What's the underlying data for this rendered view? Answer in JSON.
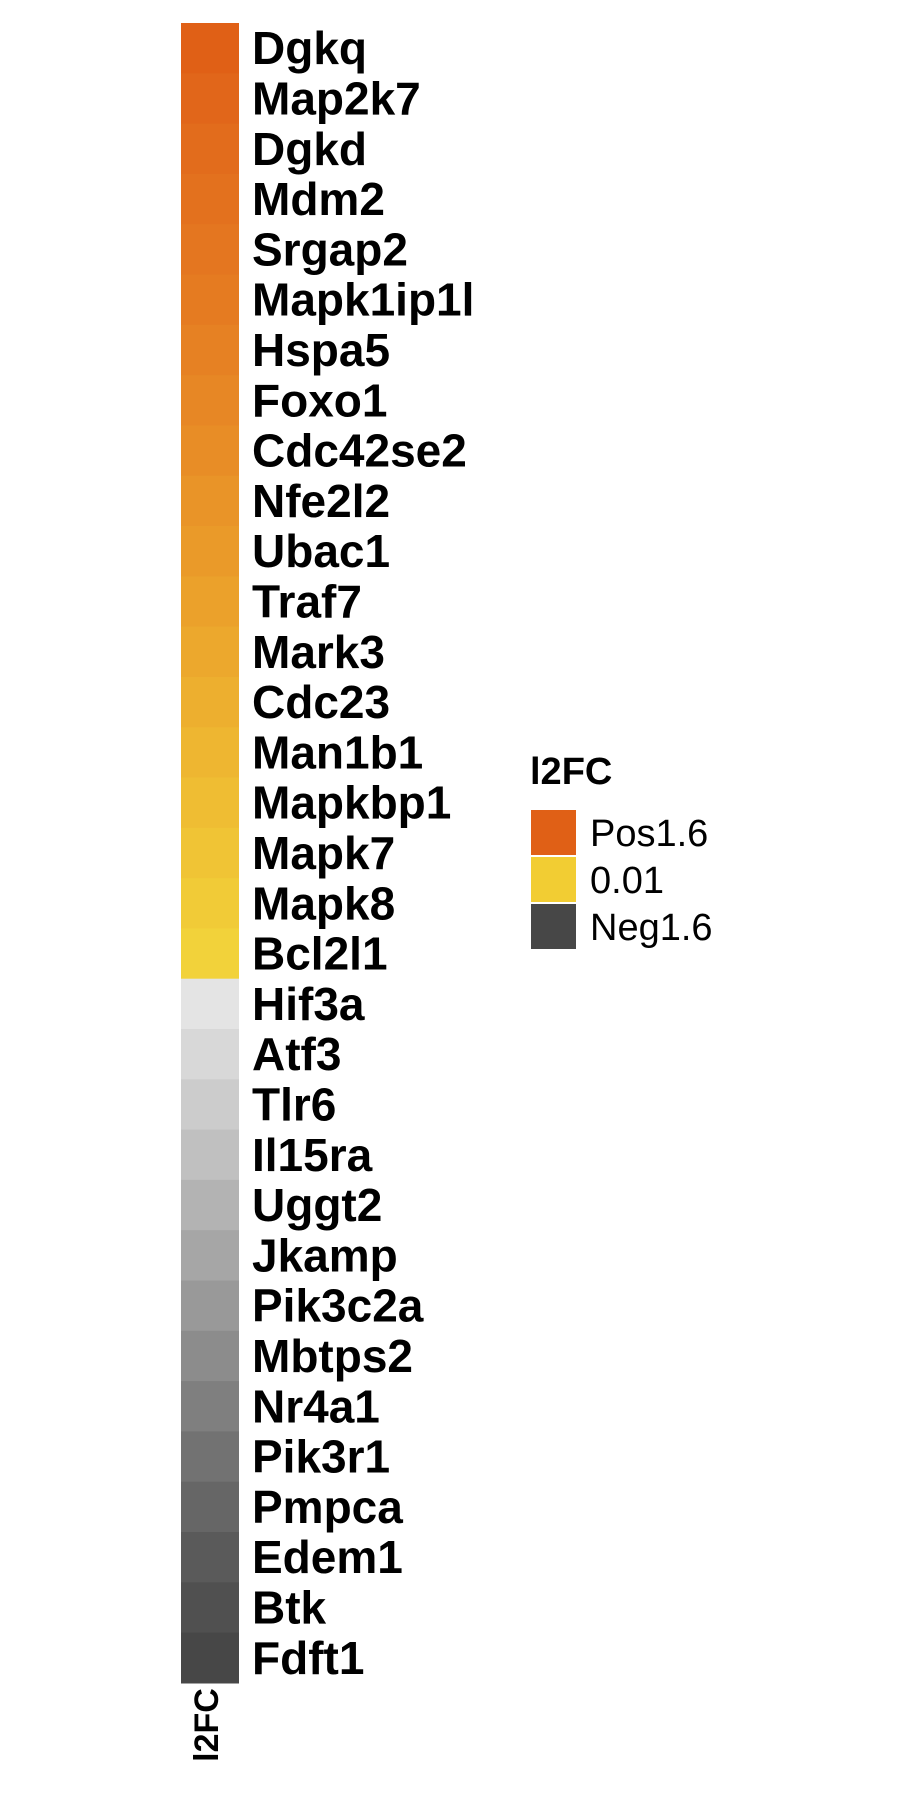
{
  "chart_data": {
    "type": "heatmap",
    "column_label": "l2FC",
    "rows": [
      "Dgkq",
      "Map2k7",
      "Dgkd",
      "Mdm2",
      "Srgap2",
      "Mapk1ip1l",
      "Hspa5",
      "Foxo1",
      "Cdc42se2",
      "Nfe2l2",
      "Ubac1",
      "Traf7",
      "Mark3",
      "Cdc23",
      "Man1b1",
      "Mapkbp1",
      "Mapk7",
      "Mapk8",
      "Bcl2l1",
      "Hif3a",
      "Atf3",
      "Tlr6",
      "Il15ra",
      "Uggt2",
      "Jkamp",
      "Pik3c2a",
      "Mbtps2",
      "Nr4a1",
      "Pik3r1",
      "Pmpca",
      "Edem1",
      "Btk",
      "Fdft1"
    ],
    "cell_colors": [
      "#e06016",
      "#e1661a",
      "#e26c1c",
      "#e3711e",
      "#e47620",
      "#e57b21",
      "#e68123",
      "#e78725",
      "#e88d26",
      "#e99428",
      "#ea9a29",
      "#eba12b",
      "#eca82d",
      "#edaf2f",
      "#eeb631",
      "#efbd33",
      "#f0c435",
      "#f1cb37",
      "#f2d23a",
      "#e4e4e4",
      "#d8d8d8",
      "#cccccc",
      "#c0c0c0",
      "#b3b3b3",
      "#a6a6a6",
      "#999999",
      "#8c8c8c",
      "#7f7f7f",
      "#727272",
      "#666666",
      "#5a5a5a",
      "#505050",
      "#474747"
    ],
    "legend": {
      "title": "l2FC",
      "entries": [
        {
          "label": "Pos1.6",
          "color": "#e06016"
        },
        {
          "label": "0.01",
          "color": "#f2cd33"
        },
        {
          "label": "Neg1.6",
          "color": "#474747"
        }
      ]
    }
  }
}
